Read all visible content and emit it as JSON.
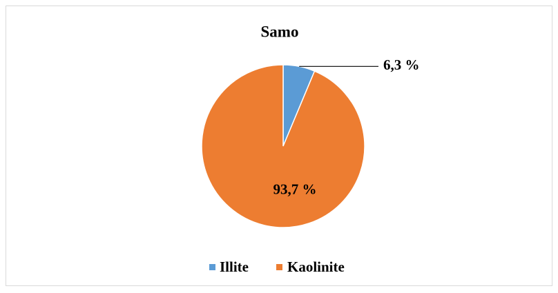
{
  "chart_data": {
    "type": "pie",
    "title": "Samo",
    "categories": [
      "Illite",
      "Kaolinite"
    ],
    "values": [
      6.3,
      93.7
    ],
    "value_labels": [
      "6,3 %",
      "93,7 %"
    ],
    "colors": [
      "#5b9bd5",
      "#ed7d31"
    ],
    "legend": "bottom"
  }
}
